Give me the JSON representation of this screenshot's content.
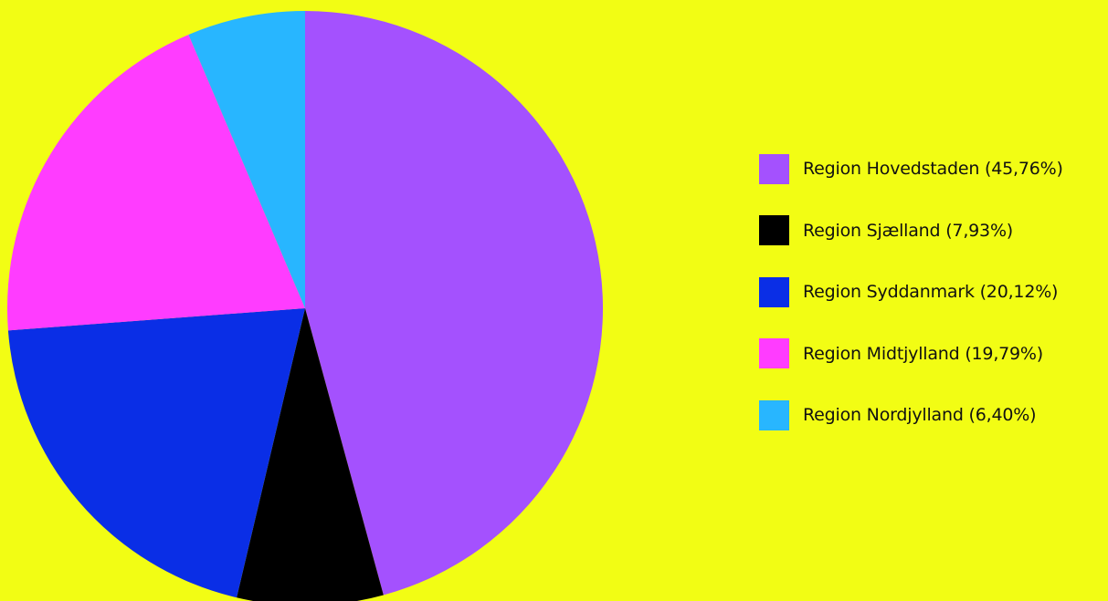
{
  "chart_data": {
    "type": "pie",
    "start_angle_deg": 0,
    "direction": "clockwise",
    "slices": [
      {
        "label": "Region Hovedstaden",
        "value": 45.76,
        "display": "Region Hovedstaden (45,76%)",
        "color": "#a451fe"
      },
      {
        "label": "Region Sjælland",
        "value": 7.93,
        "display": "Region Sjælland (7,93%)",
        "color": "#000000"
      },
      {
        "label": "Region Syddanmark",
        "value": 20.12,
        "display": "Region Syddanmark (20,12%)",
        "color": "#0a2ee6"
      },
      {
        "label": "Region Midtjylland",
        "value": 19.79,
        "display": "Region Midtjylland (19,79%)",
        "color": "#ff3cff"
      },
      {
        "label": "Region Nordjylland",
        "value": 6.4,
        "display": "Region Nordjylland (6,40%)",
        "color": "#28b6ff"
      }
    ],
    "legend_position": "right"
  },
  "colors": {
    "background": "#f2fd14"
  }
}
